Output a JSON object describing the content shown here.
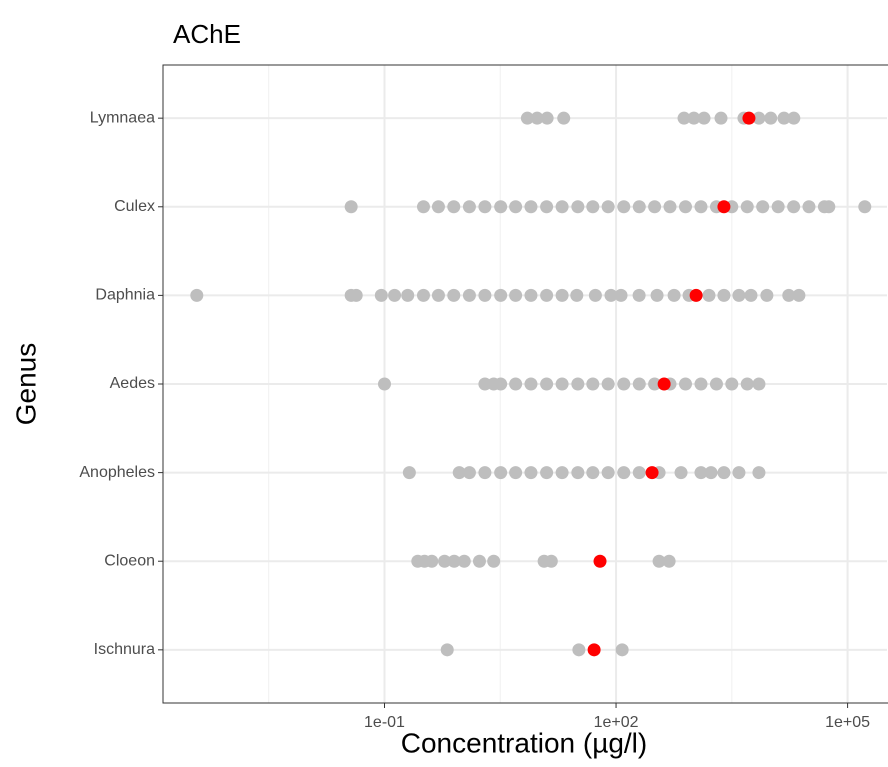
{
  "chart_data": {
    "type": "strip",
    "title": "AChE",
    "xlabel": "Concentration (µg/l)",
    "ylabel": "Genus",
    "categories": [
      "Lymnaea",
      "Culex",
      "Daphnia",
      "Aedes",
      "Anopheles",
      "Cloeon",
      "Ischnura"
    ],
    "xlog": true,
    "grid": true,
    "xlim": [
      0.000135,
      324000
    ],
    "xticks": [
      {
        "value": 0.1,
        "label": "1e-01"
      },
      {
        "value": 100,
        "label": "1e+02"
      },
      {
        "value": 100000,
        "label": "1e+05"
      }
    ],
    "x_minor_ticks": [
      0.00316,
      3.16,
      3162
    ],
    "series": [
      {
        "color": "#bebebe",
        "x": [
          [
            7.1,
            9.5,
            12.8,
            21,
            760,
            1020,
            1380,
            2290,
            4540,
            7100,
            10100,
            15000,
            20100
          ],
          [
            0.037,
            0.32,
            0.5,
            0.79,
            1.26,
            2,
            3.2,
            5,
            7.9,
            12.6,
            20,
            32,
            50,
            79,
            126,
            200,
            316,
            500,
            794,
            1260,
            2000,
            3160,
            5010,
            7940,
            12600,
            20000,
            31600,
            50100,
            57100,
            167000
          ],
          [
            0.00037,
            0.037,
            0.043,
            0.091,
            0.135,
            0.2,
            0.32,
            0.5,
            0.79,
            1.26,
            2,
            3.2,
            5,
            7.9,
            12.6,
            20,
            31,
            54,
            86,
            116,
            199,
            340,
            565,
            883,
            1600,
            2500,
            3910,
            5600,
            9000,
            17300,
            23400
          ],
          [
            0.1,
            2,
            2.6,
            3.2,
            5,
            7.9,
            12.6,
            20,
            32,
            50,
            79,
            126,
            200,
            316,
            500,
            794,
            1260,
            2000,
            3160,
            5010,
            7100
          ],
          [
            0.21,
            0.93,
            1.26,
            2,
            3.2,
            5,
            7.9,
            12.6,
            20,
            32,
            50,
            79,
            126,
            200,
            361,
            695,
            1260,
            1700,
            2500,
            3910,
            7100
          ],
          [
            0.27,
            0.33,
            0.41,
            0.6,
            0.8,
            1.08,
            1.7,
            2.6,
            11.7,
            14.5,
            361,
            487
          ],
          [
            0.65,
            33,
            120
          ]
        ]
      },
      {
        "color": "#ff0000",
        "x": [
          [
            5270
          ],
          [
            2500
          ],
          [
            1090
          ],
          [
            420
          ],
          [
            293
          ],
          [
            62
          ],
          [
            52
          ]
        ]
      }
    ]
  }
}
